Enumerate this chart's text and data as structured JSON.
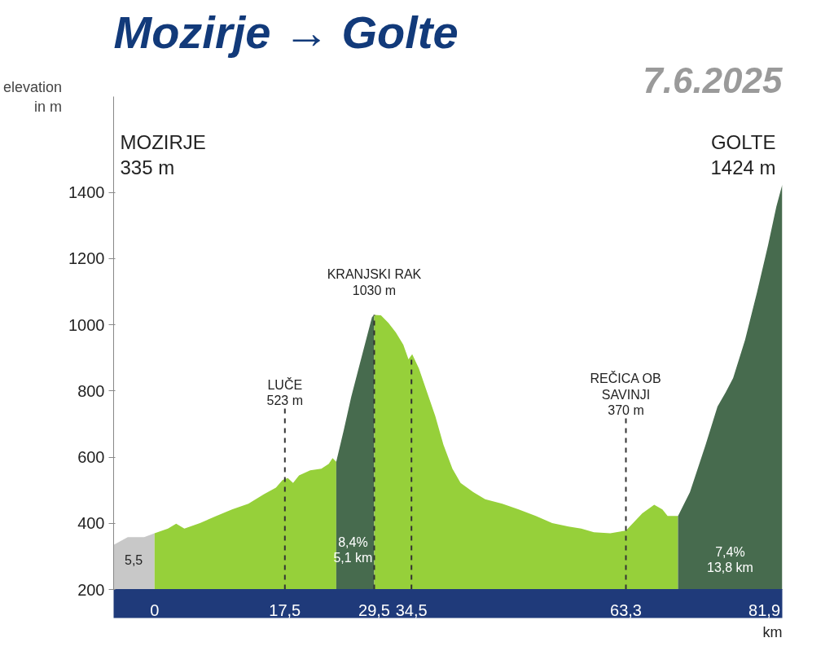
{
  "chart_data": {
    "type": "area",
    "title": "Mozirje → Golte",
    "subtitle": "7.6.2025",
    "xlabel": "km",
    "ylabel": "elevation\nin m",
    "series": [
      {
        "color": "#c8c8c8",
        "x": [
          -5.5,
          -3.6,
          -1.4,
          0
        ],
        "values": [
          335,
          358,
          358,
          370
        ]
      },
      {
        "color": "#96d03a",
        "x": [
          0,
          1.8,
          2.9,
          4.0,
          6.1,
          8.3,
          10.4,
          12.6,
          14.7,
          16.3,
          17.2,
          17.9,
          18.6,
          19.4,
          20.9,
          22.4,
          23.4,
          23.9,
          24.4
        ],
        "values": [
          370,
          384,
          399,
          384,
          401,
          422,
          442,
          459,
          488,
          508,
          531,
          537,
          522,
          545,
          560,
          565,
          580,
          597,
          586
        ]
      },
      {
        "color": "#476b4e",
        "x": [
          24.4,
          25.4,
          26.4,
          27.4,
          28.4,
          29.2,
          29.5
        ],
        "values": [
          586,
          681,
          781,
          868,
          954,
          1023,
          1030
        ]
      },
      {
        "color": "#96d03a",
        "x": [
          29.5,
          30.4,
          31.4,
          32.4,
          33.4,
          34.1,
          34.6,
          35.5,
          36.6,
          37.7,
          38.8,
          40.0,
          41.1,
          42.8,
          44.4,
          46.7,
          48.9,
          51.2,
          53.4,
          55.6,
          57.3,
          59.0,
          61.2,
          63.3,
          65.5,
          67.1,
          68.2,
          68.9,
          70.3
        ],
        "values": [
          1030,
          1029,
          1006,
          977,
          940,
          896,
          911,
          868,
          796,
          724,
          637,
          565,
          522,
          494,
          473,
          459,
          442,
          422,
          401,
          390,
          384,
          373,
          370,
          378,
          430,
          456,
          442,
          422,
          422
        ]
      },
      {
        "color": "#476b4e",
        "x": [
          70.3,
          71.9,
          74.0,
          75.6,
          76.7,
          77.7,
          79.3,
          80.9,
          82.4,
          83.5,
          84.3
        ],
        "values": [
          422,
          494,
          637,
          753,
          796,
          839,
          954,
          1098,
          1242,
          1357,
          1424
        ]
      }
    ],
    "xlim": [
      -5.5,
      84.3
    ],
    "ylim": [
      200,
      1690
    ],
    "xticks": [
      0,
      {
        "value": 17.5,
        "label": "17,5"
      },
      {
        "value": 29.5,
        "label": "29,5"
      },
      {
        "value": 34.5,
        "label": "34,5"
      },
      {
        "value": 63.3,
        "label": "63,3"
      },
      {
        "value": 81.9,
        "label": "81,9"
      }
    ],
    "yticks": [
      200,
      400,
      600,
      800,
      1000,
      1200,
      1400
    ],
    "grid": false,
    "ref_lines": [
      {
        "axis": "x",
        "value": 17.5,
        "color": "#333333",
        "line_style": "dashed",
        "label": "LUČE\n523 m"
      },
      {
        "axis": "x",
        "value": 29.5,
        "color": "#333333",
        "line_style": "dashed",
        "label": "KRANJSKI RAK\n1030 m"
      },
      {
        "axis": "x",
        "value": 34.5,
        "color": "#333333",
        "line_style": "dashed"
      },
      {
        "axis": "x",
        "value": 63.3,
        "color": "#333333",
        "line_style": "dashed",
        "label": "REČICA OB\nSAVINJI\n370 m"
      }
    ],
    "annotations": [
      "MOZIRJE\n335 m",
      "GOLTE\n1424 m",
      "8,4%\n5,1 km",
      "7,4%\n13,8 km",
      "5,5"
    ]
  }
}
